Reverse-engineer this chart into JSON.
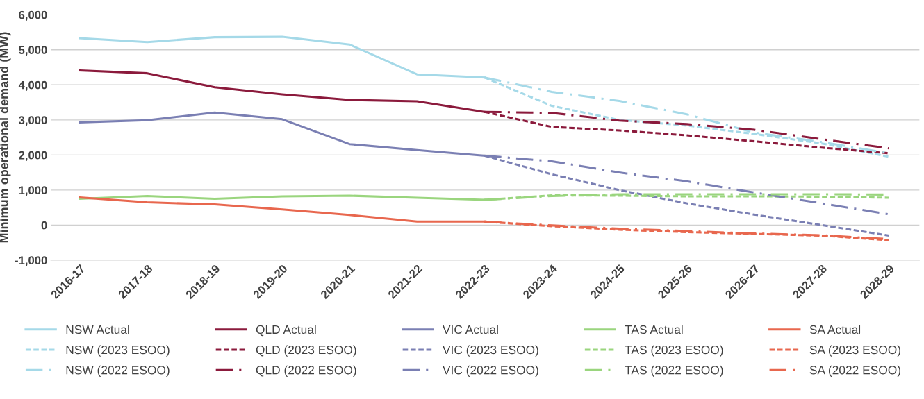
{
  "chart_data": {
    "type": "line",
    "ylabel": "Minimum operational demand (MW)",
    "categories": [
      "2016-17",
      "2017-18",
      "2018-19",
      "2019-20",
      "2020-21",
      "2021-22",
      "2022-23",
      "2023-24",
      "2024-25",
      "2025-26",
      "2026-27",
      "2027-28",
      "2028-29"
    ],
    "ylim": [
      -1000,
      6000
    ],
    "yticks": [
      {
        "value": -1000,
        "label": "-1,000"
      },
      0,
      {
        "value": 1000,
        "label": "1,000"
      },
      {
        "value": 2000,
        "label": "2,000"
      },
      {
        "value": 3000,
        "label": "3,000"
      },
      {
        "value": 4000,
        "label": "4,000"
      },
      {
        "value": 5000,
        "label": "5,000"
      },
      {
        "value": 6000,
        "label": "6,000"
      }
    ],
    "grid": "y",
    "legend": "bottom",
    "marker": "none",
    "series": [
      {
        "name": "NSW Actual",
        "color": "#a5d9e8",
        "line_style": "solid",
        "values": [
          5330,
          5220,
          5360,
          5370,
          5150,
          4300,
          4210,
          null,
          null,
          null,
          null,
          null,
          null
        ]
      },
      {
        "name": "QLD Actual",
        "color": "#8b1a3c",
        "line_style": "solid",
        "values": [
          4410,
          4330,
          3930,
          3730,
          3570,
          3530,
          3230,
          null,
          null,
          null,
          null,
          null,
          null
        ]
      },
      {
        "name": "VIC Actual",
        "color": "#7a7fb3",
        "line_style": "solid",
        "values": [
          2930,
          2990,
          3210,
          3020,
          2310,
          2140,
          1980,
          null,
          null,
          null,
          null,
          null,
          null
        ]
      },
      {
        "name": "TAS Actual",
        "color": "#9ad57e",
        "line_style": "solid",
        "values": [
          750,
          830,
          750,
          820,
          840,
          780,
          720,
          null,
          null,
          null,
          null,
          null,
          null
        ]
      },
      {
        "name": "SA Actual",
        "color": "#e8674e",
        "line_style": "solid",
        "values": [
          790,
          650,
          590,
          450,
          290,
          100,
          100,
          null,
          null,
          null,
          null,
          null,
          null
        ]
      },
      {
        "name": "NSW (2023 ESOO)",
        "color": "#a5d9e8",
        "line_style": "dashed",
        "values": [
          null,
          null,
          null,
          null,
          null,
          null,
          4210,
          3400,
          3000,
          2840,
          2600,
          2330,
          1950
        ]
      },
      {
        "name": "QLD (2023 ESOO)",
        "color": "#8b1a3c",
        "line_style": "dashed",
        "values": [
          null,
          null,
          null,
          null,
          null,
          null,
          3230,
          2800,
          2700,
          2560,
          2390,
          2210,
          2050
        ]
      },
      {
        "name": "VIC (2023 ESOO)",
        "color": "#7a7fb3",
        "line_style": "dashed",
        "values": [
          null,
          null,
          null,
          null,
          null,
          null,
          1980,
          1450,
          1000,
          620,
          300,
          0,
          -300
        ]
      },
      {
        "name": "TAS (2023 ESOO)",
        "color": "#9ad57e",
        "line_style": "dashed",
        "values": [
          null,
          null,
          null,
          null,
          null,
          null,
          720,
          850,
          840,
          820,
          820,
          810,
          780
        ]
      },
      {
        "name": "SA (2023 ESOO)",
        "color": "#e8674e",
        "line_style": "dashed",
        "values": [
          null,
          null,
          null,
          null,
          null,
          null,
          100,
          -30,
          -130,
          -200,
          -250,
          -300,
          -430
        ]
      },
      {
        "name": "NSW (2022 ESOO)",
        "color": "#a5d9e8",
        "line_style": "dashdot",
        "values": [
          null,
          null,
          null,
          null,
          null,
          null,
          4210,
          3800,
          3540,
          3160,
          2640,
          2370,
          2050
        ]
      },
      {
        "name": "QLD (2022 ESOO)",
        "color": "#8b1a3c",
        "line_style": "dashdot",
        "values": [
          null,
          null,
          null,
          null,
          null,
          null,
          3230,
          3200,
          2980,
          2880,
          2720,
          2450,
          2190
        ]
      },
      {
        "name": "VIC (2022 ESOO)",
        "color": "#7a7fb3",
        "line_style": "dashdot",
        "values": [
          null,
          null,
          null,
          null,
          null,
          null,
          1980,
          1820,
          1500,
          1250,
          930,
          620,
          310
        ]
      },
      {
        "name": "TAS (2022 ESOO)",
        "color": "#9ad57e",
        "line_style": "dashdot",
        "values": [
          null,
          null,
          null,
          null,
          null,
          null,
          720,
          830,
          880,
          880,
          880,
          880,
          870
        ]
      },
      {
        "name": "SA (2022 ESOO)",
        "color": "#e8674e",
        "line_style": "dashdot",
        "values": [
          null,
          null,
          null,
          null,
          null,
          null,
          100,
          -10,
          -100,
          -170,
          -240,
          -290,
          -400
        ]
      }
    ]
  }
}
